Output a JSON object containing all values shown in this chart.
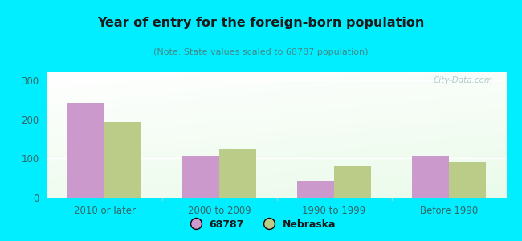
{
  "title": "Year of entry for the foreign-born population",
  "subtitle": "(Note: State values scaled to 68787 population)",
  "categories": [
    "2010 or later",
    "2000 to 2009",
    "1990 to 1999",
    "Before 1990"
  ],
  "series_68787": [
    243,
    107,
    43,
    107
  ],
  "series_nebraska": [
    193,
    124,
    80,
    91
  ],
  "color_68787": "#cc99cc",
  "color_nebraska": "#bbcc88",
  "background_outer": "#00eeff",
  "ylim": [
    0,
    320
  ],
  "yticks": [
    0,
    100,
    200,
    300
  ],
  "bar_width": 0.32,
  "legend_68787": "68787",
  "legend_nebraska": "Nebraska",
  "watermark": "City-Data.com",
  "title_color": "#1a1a1a",
  "subtitle_color": "#448888",
  "tick_label_color": "#336666",
  "xticklabel_color": "#336666"
}
